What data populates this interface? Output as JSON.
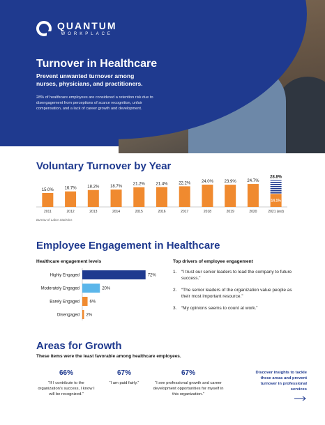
{
  "brand": {
    "name": "QUANTUM",
    "sub": "WORKPLACE"
  },
  "hero": {
    "title": "Turnover in Healthcare",
    "subtitle": "Prevent unwanted turnover among nurses, physicians, and practitioners.",
    "body": "28% of healthcare employees are considered a retention risk due to disengagement from perceptions of scarce recognition, unfair compensation, and a lack of career growth and development."
  },
  "turnover": {
    "title": "Voluntary Turnover by Year",
    "source": "Bureau of Labor Statistics",
    "estimate_label": "14.1%",
    "colors": {
      "bar": "#f08a2f",
      "estimate": "#1f3a8f"
    }
  },
  "engagement": {
    "title": "Employee Engagement in Healthcare",
    "levels_heading": "Healthcare engagement levels",
    "drivers_heading": "Top drivers of employee engagement",
    "drivers": [
      {
        "num": "1.",
        "text": "“I trust our senior leaders to lead the company to future success.”"
      },
      {
        "num": "2.",
        "text": "“The senior leaders of the organization value people as their most important resource.”"
      },
      {
        "num": "3.",
        "text": "“My opinions seems to count at work.”"
      }
    ]
  },
  "growth": {
    "title": "Areas for Growth",
    "subtitle": "These items were the least favorable among healthcare employees.",
    "stats": [
      {
        "pct": "66%",
        "quote": "“If I contribute to the organization's success, I know I will be recognized.”"
      },
      {
        "pct": "67%",
        "quote": "“I am paid fairly.”"
      },
      {
        "pct": "67%",
        "quote": "“I see professional growth and career development opportunities for myself in this organization.”"
      }
    ],
    "cta": "Discover insights to tackle these areas and prevent turnover in professional services"
  },
  "chart_data": [
    {
      "type": "bar",
      "title": "Voluntary Turnover by Year",
      "categories": [
        "2011",
        "2012",
        "2013",
        "2014",
        "2015",
        "2016",
        "2017",
        "2018",
        "2019",
        "2020",
        "2021 (est)"
      ],
      "values": [
        15.0,
        16.7,
        18.2,
        18.7,
        21.2,
        21.4,
        22.2,
        24.0,
        23.9,
        24.7,
        28.8
      ],
      "labels": [
        "15.0%",
        "16.7%",
        "18.2%",
        "18.7%",
        "21.2%",
        "21.4%",
        "22.2%",
        "24.0%",
        "23.9%",
        "24.7%",
        "28.8%"
      ],
      "ylim": [
        0,
        30
      ],
      "grid": false
    },
    {
      "type": "bar",
      "orientation": "horizontal",
      "title": "Healthcare engagement levels",
      "categories": [
        "Highly Engaged",
        "Moderately Engaged",
        "Barely Engaged",
        "Disengaged"
      ],
      "values": [
        72,
        20,
        6,
        2
      ],
      "labels": [
        "72%",
        "20%",
        "6%",
        "2%"
      ],
      "colors": [
        "#1f3a8f",
        "#5bb6ea",
        "#f08a2f",
        "#f08a2f"
      ],
      "xlim": [
        0,
        100
      ]
    }
  ]
}
